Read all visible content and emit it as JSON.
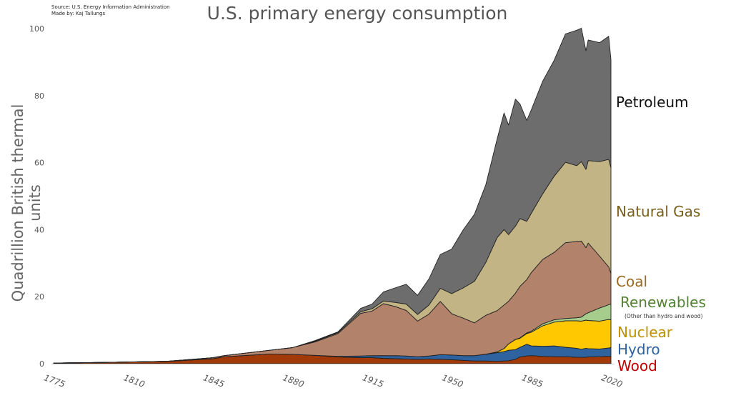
{
  "header": {
    "source": "Source: U.S. Energy Information Administration",
    "author": "Made by: Kaj Tallungs",
    "title": "U.S. primary energy consumption"
  },
  "colors": {
    "Petroleum": "#6d6d6d",
    "Natural Gas": "#c3b485",
    "Coal": "#b3826a",
    "Renewables": "#a6cd8c",
    "Nuclear": "#ffc800",
    "Hydro": "#2e63a0",
    "Wood": "#a13a08"
  },
  "label_colors": {
    "Petroleum": "#111111",
    "Natural Gas": "#7a6020",
    "Coal": "#9b6a20",
    "Renewables": "#548235",
    "Nuclear": "#bf9000",
    "Hydro": "#2e63a0",
    "Wood": "#c00000"
  },
  "series_labels": {
    "petroleum": "Petroleum",
    "natural_gas": "Natural Gas",
    "coal": "Coal",
    "renewables": "Renewables",
    "renewables_note": "(Other than hydro and wood)",
    "nuclear": "Nuclear",
    "hydro": "Hydro",
    "wood": "Wood"
  },
  "chart_data": {
    "type": "area",
    "stacked": true,
    "ylabel": "Quadrillion British thermal units",
    "ylim": [
      0,
      100
    ],
    "xlim": [
      1775,
      2020
    ],
    "y_ticks": [
      0,
      20,
      40,
      60,
      80,
      100
    ],
    "x_ticks": [
      "1775",
      "1810",
      "1845",
      "1880",
      "1915",
      "1950",
      "1985",
      "2020"
    ],
    "grid": false,
    "legend": "labels at right end of each band",
    "x": [
      1775,
      1800,
      1825,
      1845,
      1850,
      1870,
      1880,
      1890,
      1900,
      1910,
      1915,
      1920,
      1925,
      1930,
      1935,
      1940,
      1945,
      1950,
      1955,
      1960,
      1965,
      1970,
      1973,
      1975,
      1978,
      1980,
      1983,
      1985,
      1990,
      1995,
      2000,
      2005,
      2007,
      2009,
      2010,
      2015,
      2019,
      2020
    ],
    "series": [
      {
        "name": "Wood",
        "values": [
          0.2,
          0.4,
          0.7,
          1.5,
          2.1,
          2.9,
          2.8,
          2.5,
          2.0,
          1.8,
          1.8,
          1.6,
          1.5,
          1.4,
          1.3,
          1.4,
          1.3,
          1.2,
          1.0,
          0.8,
          0.8,
          0.7,
          0.8,
          0.9,
          1.3,
          2.0,
          2.3,
          2.4,
          2.2,
          2.1,
          2.1,
          1.9,
          1.9,
          1.9,
          2.0,
          2.1,
          2.2,
          2.2
        ]
      },
      {
        "name": "Hydro",
        "values": [
          0,
          0,
          0,
          0,
          0,
          0,
          0,
          0,
          0.2,
          0.5,
          0.6,
          0.8,
          0.9,
          0.9,
          0.8,
          0.9,
          1.4,
          1.4,
          1.4,
          1.6,
          2.0,
          2.6,
          2.8,
          3.1,
          2.9,
          2.9,
          3.5,
          2.9,
          3.0,
          3.2,
          2.8,
          2.7,
          2.4,
          2.7,
          2.5,
          2.3,
          2.5,
          2.6
        ]
      },
      {
        "name": "Nuclear",
        "values": [
          0,
          0,
          0,
          0,
          0,
          0,
          0,
          0,
          0,
          0,
          0,
          0,
          0,
          0,
          0,
          0,
          0,
          0,
          0,
          0,
          0.04,
          0.24,
          0.9,
          1.9,
          3.0,
          2.7,
          3.2,
          4.1,
          6.1,
          7.1,
          7.9,
          8.2,
          8.4,
          8.4,
          8.4,
          8.3,
          8.5,
          8.3
        ]
      },
      {
        "name": "Renewables",
        "values": [
          0,
          0,
          0,
          0,
          0,
          0,
          0,
          0,
          0,
          0,
          0,
          0,
          0,
          0,
          0,
          0,
          0,
          0,
          0,
          0,
          0,
          0.01,
          0.02,
          0.03,
          0.05,
          0.1,
          0.2,
          0.3,
          0.6,
          0.7,
          0.7,
          0.9,
          1.2,
          1.9,
          2.3,
          3.9,
          4.4,
          4.7
        ]
      },
      {
        "name": "Coal",
        "values": [
          0.0,
          0.01,
          0.03,
          0.3,
          0.3,
          1.1,
          2.0,
          4.0,
          6.8,
          12.7,
          13.3,
          15.5,
          14.7,
          13.6,
          10.6,
          12.5,
          15.9,
          12.3,
          11.2,
          9.8,
          11.6,
          12.3,
          13.0,
          12.7,
          13.8,
          15.4,
          15.9,
          17.5,
          19.2,
          20.1,
          22.6,
          22.8,
          22.7,
          19.7,
          20.8,
          15.5,
          11.3,
          9.2
        ]
      },
      {
        "name": "Natural Gas",
        "values": [
          0,
          0,
          0,
          0,
          0,
          0,
          0,
          0.2,
          0.3,
          0.5,
          0.7,
          0.8,
          1.2,
          1.9,
          2.0,
          2.7,
          3.9,
          6.0,
          9.0,
          12.4,
          15.8,
          21.8,
          22.5,
          19.9,
          20.0,
          20.2,
          17.4,
          17.7,
          19.6,
          22.7,
          24.0,
          22.6,
          23.7,
          23.4,
          24.6,
          28.2,
          32.1,
          31.5
        ]
      },
      {
        "name": "Petroleum",
        "values": [
          0,
          0,
          0,
          0,
          0,
          0,
          0,
          0.2,
          0.2,
          1.0,
          1.4,
          2.7,
          4.3,
          5.9,
          5.7,
          7.8,
          10.1,
          13.3,
          17.3,
          20.0,
          23.2,
          29.5,
          34.8,
          32.7,
          37.9,
          34.2,
          30.1,
          30.9,
          33.6,
          34.6,
          38.3,
          40.4,
          39.8,
          35.4,
          36.0,
          35.5,
          36.7,
          32.2
        ]
      }
    ]
  }
}
